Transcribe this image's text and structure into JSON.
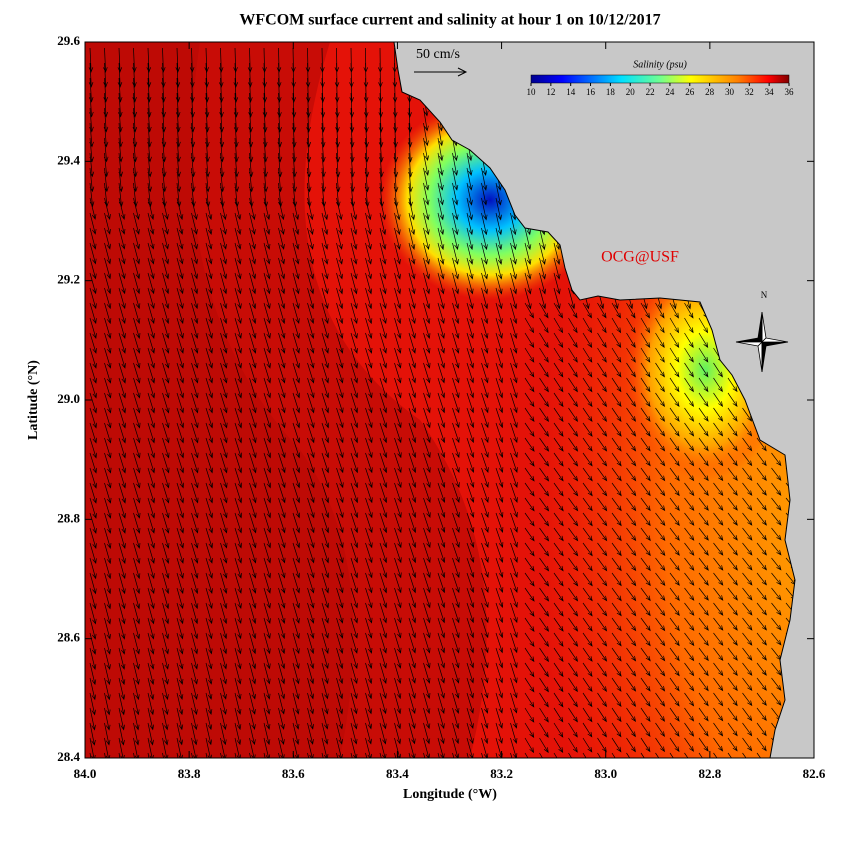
{
  "title": "WFCOM surface current and salinity at hour 1 on 10/12/2017",
  "x_axis": {
    "label": "Longitude (°W)",
    "lim": [
      84.0,
      82.6
    ],
    "ticks": [
      {
        "value": 84.0,
        "label": "84.0"
      },
      {
        "value": 83.8,
        "label": "83.8"
      },
      {
        "value": 83.6,
        "label": "83.6"
      },
      {
        "value": 83.4,
        "label": "83.4"
      },
      {
        "value": 83.2,
        "label": "83.2"
      },
      {
        "value": 83.0,
        "label": "83.0"
      },
      {
        "value": 82.8,
        "label": "82.8"
      },
      {
        "value": 82.6,
        "label": "82.6"
      }
    ]
  },
  "y_axis": {
    "label": "Latitude (°N)",
    "lim": [
      28.4,
      29.6
    ],
    "ticks": [
      {
        "value": 28.4,
        "label": "28.4"
      },
      {
        "value": 28.6,
        "label": "28.6"
      },
      {
        "value": 28.8,
        "label": "28.8"
      },
      {
        "value": 29.0,
        "label": "29.0"
      },
      {
        "value": 29.2,
        "label": "29.2"
      },
      {
        "value": 29.4,
        "label": "29.4"
      },
      {
        "value": 29.6,
        "label": "29.6"
      }
    ]
  },
  "colorbar": {
    "title": "Salinity (psu)",
    "lim": [
      10,
      36
    ],
    "ticks": [
      10,
      12,
      14,
      16,
      18,
      20,
      22,
      24,
      26,
      28,
      30,
      32,
      34,
      36
    ]
  },
  "scale_label": "50 cm/s",
  "credit": "OCG@USF",
  "compass_label": "N"
}
